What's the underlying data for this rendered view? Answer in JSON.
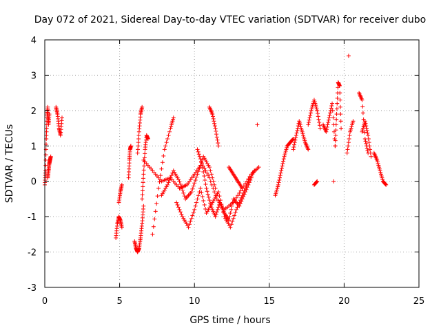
{
  "chart_data": {
    "type": "scatter",
    "title": "Day 072 of 2021, Sidereal Day-to-day VTEC variation (SDTVAR) for receiver dubo",
    "xlabel": "GPS time / hours",
    "ylabel": "SDTVAR / TECUs",
    "xlim": [
      0,
      25
    ],
    "ylim": [
      -3,
      4
    ],
    "xticks": [
      0,
      5,
      10,
      15,
      20,
      25
    ],
    "yticks": [
      -3,
      -2,
      -1,
      0,
      1,
      2,
      3,
      4
    ],
    "grid": true,
    "marker": "+",
    "color": "#ff0000",
    "series": [
      {
        "name": "SDTVAR",
        "segments": [
          {
            "x": [
              0.0,
              0.05,
              0.1,
              0.15,
              0.2,
              0.25,
              0.3
            ],
            "y": [
              -0.1,
              0.3,
              1.2,
              1.8,
              2.1,
              1.6,
              1.9
            ]
          },
          {
            "x": [
              0.2,
              0.25,
              0.3,
              0.35,
              0.4
            ],
            "y": [
              0.1,
              0.3,
              0.5,
              0.6,
              0.7
            ]
          },
          {
            "x": [
              0.75,
              0.85,
              0.95,
              1.05,
              1.15
            ],
            "y": [
              2.1,
              1.9,
              1.5,
              1.3,
              1.8
            ]
          },
          {
            "x": [
              4.75,
              4.85,
              4.95,
              5.05,
              5.15
            ],
            "y": [
              -1.6,
              -1.2,
              -1.0,
              -1.1,
              -1.3
            ]
          },
          {
            "x": [
              4.95,
              5.05,
              5.15
            ],
            "y": [
              -0.6,
              -0.3,
              -0.1
            ]
          },
          {
            "x": [
              5.6,
              5.65,
              5.7,
              5.75
            ],
            "y": [
              0.1,
              0.6,
              0.9,
              1.0
            ]
          },
          {
            "x": [
              6.0,
              6.1,
              6.2,
              6.3,
              6.4,
              6.5,
              6.6
            ],
            "y": [
              -1.7,
              -1.9,
              -2.0,
              -1.9,
              -1.6,
              -1.2,
              -0.7
            ]
          },
          {
            "x": [
              6.2,
              6.3,
              6.4,
              6.5
            ],
            "y": [
              0.8,
              1.4,
              1.9,
              2.1
            ]
          },
          {
            "x": [
              6.5,
              6.6,
              6.7,
              6.8,
              6.9
            ],
            "y": [
              -0.5,
              0.2,
              0.9,
              1.3,
              1.2
            ]
          },
          {
            "x": [
              7.2,
              7.6,
              8.0,
              8.4,
              8.6
            ],
            "y": [
              -1.5,
              -0.2,
              0.9,
              1.5,
              1.8
            ]
          },
          {
            "x": [
              6.6,
              7.2,
              7.8,
              8.4,
              9.0,
              9.5,
              10.0,
              10.5,
              11.0,
              11.5,
              12.0,
              12.6,
              13.2,
              13.8,
              14.3
            ],
            "y": [
              0.6,
              0.3,
              0.0,
              0.1,
              -0.2,
              -0.1,
              0.2,
              0.5,
              0.1,
              -0.5,
              -0.8,
              -0.6,
              -0.2,
              0.2,
              0.4
            ]
          },
          {
            "x": [
              7.8,
              8.2,
              8.6,
              9.0,
              9.4,
              9.8,
              10.2,
              10.6,
              11.0,
              11.4
            ],
            "y": [
              -0.4,
              -0.1,
              0.3,
              0.0,
              -0.5,
              -0.3,
              0.2,
              0.7,
              0.4,
              -0.2
            ]
          },
          {
            "x": [
              8.8,
              9.2,
              9.6,
              10.0,
              10.4,
              10.8,
              11.2,
              11.6,
              12.0,
              12.4,
              12.8,
              13.2,
              13.6,
              14.0
            ],
            "y": [
              -0.6,
              -1.0,
              -1.3,
              -0.8,
              -0.2,
              -0.9,
              -0.6,
              -0.3,
              -1.0,
              -1.3,
              -0.8,
              -0.4,
              0.0,
              0.3
            ]
          },
          {
            "x": [
              10.2,
              10.5,
              10.8,
              11.1,
              11.4,
              11.7,
              12.0,
              12.3,
              12.6,
              13.0,
              13.4,
              13.8
            ],
            "y": [
              0.9,
              0.5,
              -0.2,
              -0.7,
              -1.0,
              -0.6,
              -0.9,
              -1.1,
              -0.5,
              -0.7,
              -0.3,
              0.1
            ]
          },
          {
            "x": [
              11.0,
              11.2,
              11.4,
              11.6
            ],
            "y": [
              2.1,
              1.9,
              1.5,
              1.0
            ]
          },
          {
            "x": [
              12.3,
              12.6,
              12.9,
              13.2
            ],
            "y": [
              0.4,
              0.2,
              0.0,
              -0.2
            ]
          },
          {
            "x": [
              14.2
            ],
            "y": [
              1.6
            ]
          },
          {
            "x": [
              15.4,
              15.6,
              15.8,
              16.0,
              16.2,
              16.4,
              16.6
            ],
            "y": [
              -0.4,
              -0.1,
              0.3,
              0.7,
              1.0,
              1.1,
              1.2
            ]
          },
          {
            "x": [
              16.6,
              16.8,
              17.0,
              17.2,
              17.4,
              17.6
            ],
            "y": [
              0.9,
              1.3,
              1.7,
              1.4,
              1.1,
              0.9
            ]
          },
          {
            "x": [
              17.6,
              17.8,
              18.0,
              18.2,
              18.4
            ],
            "y": [
              1.6,
              2.0,
              2.3,
              2.0,
              1.5
            ]
          },
          {
            "x": [
              18.0,
              18.2
            ],
            "y": [
              -0.1,
              0.0
            ]
          },
          {
            "x": [
              18.6,
              18.8,
              19.0,
              19.2,
              19.4
            ],
            "y": [
              1.6,
              1.4,
              1.8,
              2.2,
              1.0
            ]
          },
          {
            "x": [
              19.4,
              19.5,
              19.6,
              19.7,
              19.8
            ],
            "y": [
              1.0,
              1.9,
              2.8,
              2.7,
              1.5
            ]
          },
          {
            "x": [
              19.3
            ],
            "y": [
              0.0
            ]
          },
          {
            "x": [
              20.2,
              20.4,
              20.6
            ],
            "y": [
              0.8,
              1.4,
              1.7
            ]
          },
          {
            "x": [
              20.3
            ],
            "y": [
              3.55
            ]
          },
          {
            "x": [
              21.0,
              21.2,
              21.4,
              21.6
            ],
            "y": [
              2.5,
              2.3,
              1.2,
              0.8
            ]
          },
          {
            "x": [
              21.2,
              21.4,
              21.6,
              21.8
            ],
            "y": [
              1.4,
              1.7,
              1.3,
              0.7
            ]
          },
          {
            "x": [
              22.0,
              22.2,
              22.4,
              22.6,
              22.8
            ],
            "y": [
              0.8,
              0.6,
              0.3,
              0.0,
              -0.1
            ]
          }
        ]
      }
    ]
  }
}
